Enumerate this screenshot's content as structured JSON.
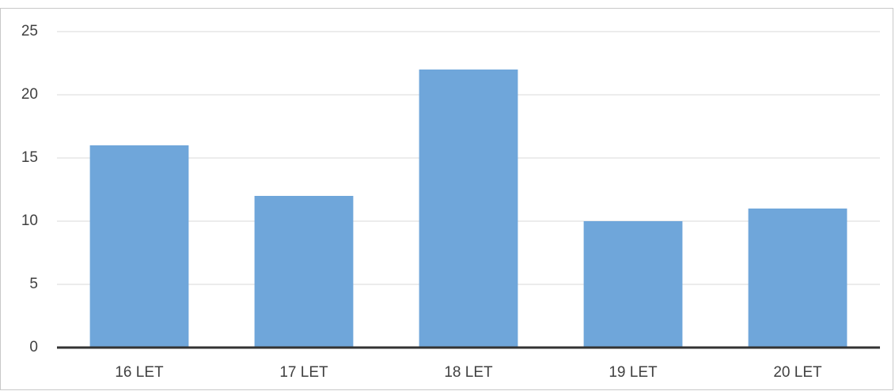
{
  "chart_data": {
    "type": "bar",
    "categories": [
      "16 LET",
      "17 LET",
      "18 LET",
      "19 LET",
      "20 LET"
    ],
    "values": [
      16,
      12,
      22,
      10,
      11
    ],
    "color": "#6fa6da",
    "ylim": [
      0,
      25
    ],
    "yticks": [
      0,
      5,
      10,
      15,
      20,
      25
    ],
    "grid": true
  }
}
